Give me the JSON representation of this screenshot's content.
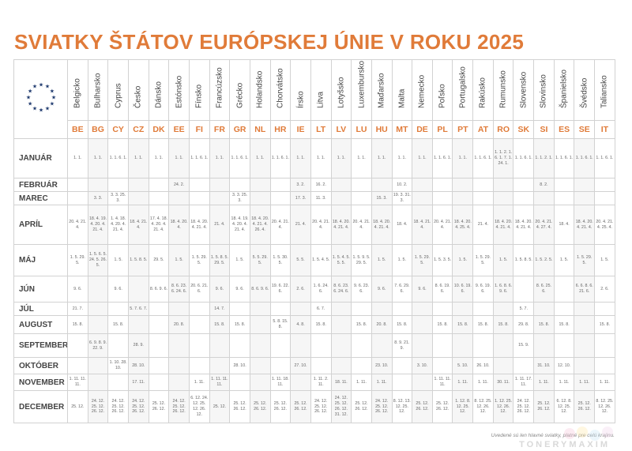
{
  "title": "SVIATKY ŠTÁTOV EURÓPSKEJ ÚNIE V ROKU 2025",
  "footnote": "Uvedené sú len hlavné sviatky, platné pre celú krajinu.",
  "brand": "TONERYMAXIM",
  "icons": {
    "eu_flag": "eu-stars-icon"
  },
  "colors": {
    "accent": "#e07b39",
    "grid": "#d2d2d2",
    "text": "#444444"
  },
  "countries": [
    {
      "name": "Belgicko",
      "code": "BE"
    },
    {
      "name": "Bulharsko",
      "code": "BG"
    },
    {
      "name": "Cyprus",
      "code": "CY"
    },
    {
      "name": "Česko",
      "code": "CZ"
    },
    {
      "name": "Dánsko",
      "code": "DK"
    },
    {
      "name": "Estónsko",
      "code": "EE"
    },
    {
      "name": "Fínsko",
      "code": "FI"
    },
    {
      "name": "Francúzsko",
      "code": "FR"
    },
    {
      "name": "Grécko",
      "code": "GR"
    },
    {
      "name": "Holandsko",
      "code": "NL"
    },
    {
      "name": "Chorvátsko",
      "code": "HR"
    },
    {
      "name": "Írsko",
      "code": "IE"
    },
    {
      "name": "Litva",
      "code": "LT"
    },
    {
      "name": "Lotyšsko",
      "code": "LV"
    },
    {
      "name": "Luxembursko",
      "code": "LU"
    },
    {
      "name": "Maďarsko",
      "code": "HU"
    },
    {
      "name": "Malta",
      "code": "MT"
    },
    {
      "name": "Nemecko",
      "code": "DE"
    },
    {
      "name": "Poľsko",
      "code": "PL"
    },
    {
      "name": "Portugalsko",
      "code": "PT"
    },
    {
      "name": "Rakúsko",
      "code": "AT"
    },
    {
      "name": "Rumunsko",
      "code": "RO"
    },
    {
      "name": "Slovensko",
      "code": "SK"
    },
    {
      "name": "Slovinsko",
      "code": "SI"
    },
    {
      "name": "Španielsko",
      "code": "ES"
    },
    {
      "name": "Švédsko",
      "code": "SE"
    },
    {
      "name": "Taliansko",
      "code": "IT"
    }
  ],
  "months": [
    {
      "name": "JANUÁR",
      "cells": [
        "1. 1.",
        "1. 1.",
        "1. 1. 6. 1.",
        "1. 1.",
        "1. 1.",
        "1. 1.",
        "1. 1. 6. 1.",
        "1. 1.",
        "1. 1. 6. 1.",
        "1. 1.",
        "1. 1. 6. 1.",
        "1. 1.",
        "1. 1.",
        "1. 1.",
        "1. 1.",
        "1. 1.",
        "1. 1.",
        "1. 1.",
        "1. 1. 6. 1.",
        "1. 1.",
        "1. 1. 6. 1.",
        "1. 1. 2. 1. 6. 1. 7. 1. 24. 1.",
        "1. 1. 6. 1.",
        "1. 1. 2. 1.",
        "1. 1. 6. 1.",
        "1. 1. 6. 1.",
        "1. 1. 6. 1."
      ]
    },
    {
      "name": "FEBRUÁR",
      "cells": [
        "",
        "",
        "",
        "",
        "",
        "24. 2.",
        "",
        "",
        "",
        "",
        "",
        "3. 2.",
        "16. 2.",
        "",
        "",
        "",
        "10. 2.",
        "",
        "",
        "",
        "",
        "",
        "",
        "8. 2.",
        "",
        "",
        ""
      ]
    },
    {
      "name": "MAREC",
      "cells": [
        "",
        "3. 3.",
        "3. 3. 25. 3.",
        "",
        "",
        "",
        "",
        "",
        "3. 3. 25. 3.",
        "",
        "",
        "17. 3.",
        "11. 3.",
        "",
        "",
        "15. 3.",
        "19. 3. 31. 3.",
        "",
        "",
        "",
        "",
        "",
        "",
        "",
        "",
        "",
        ""
      ]
    },
    {
      "name": "APRÍL",
      "cells": [
        "20. 4. 21. 4.",
        "18. 4. 19. 4. 20. 4. 21. 4.",
        "1. 4. 18. 4. 20. 4. 21. 4.",
        "18. 4. 21. 4.",
        "17. 4. 18. 4. 20. 4. 21. 4.",
        "18. 4. 20. 4.",
        "18. 4. 20. 4. 21. 4.",
        "21. 4.",
        "18. 4. 19. 4. 20. 4. 21. 4.",
        "18. 4. 20. 4. 21. 4. 26. 4.",
        "20. 4. 21. 4.",
        "21. 4.",
        "20. 4. 21. 4.",
        "18. 4. 20. 4. 21. 4.",
        "20. 4. 21. 4.",
        "18. 4. 20. 4. 21. 4.",
        "18. 4.",
        "18. 4. 21. 4.",
        "20. 4. 21. 4.",
        "18. 4. 20. 4. 25. 4.",
        "21. 4.",
        "18. 4. 20. 4. 21. 4.",
        "18. 4. 20. 4. 21. 4.",
        "20. 4. 21. 4. 27. 4.",
        "18. 4.",
        "18. 4. 20. 4. 21. 4.",
        "20. 4. 21. 4. 25. 4."
      ]
    },
    {
      "name": "MÁJ",
      "cells": [
        "1. 5. 29. 5.",
        "1. 5. 6. 5. 24. 5. 26. 5.",
        "1. 5.",
        "1. 5. 8. 5.",
        "29. 5.",
        "1. 5.",
        "1. 5. 29. 5.",
        "1. 5. 8. 5. 29. 5.",
        "1. 5.",
        "5. 5. 29. 5.",
        "1. 5. 30. 5.",
        "5. 5.",
        "1. 5. 4. 5.",
        "1. 5. 4. 5. 5. 5.",
        "1. 5. 9. 5. 29. 5.",
        "1. 5.",
        "1. 5.",
        "1. 5. 29. 5.",
        "1. 5. 3. 5.",
        "1. 5.",
        "1. 5. 29. 5.",
        "1. 5.",
        "1. 5. 8. 5.",
        "1. 5. 2. 5.",
        "1. 5.",
        "1. 5. 29. 5.",
        "1. 5."
      ]
    },
    {
      "name": "JÚN",
      "cells": [
        "9. 6.",
        "",
        "9. 6.",
        "",
        "8. 6. 9. 6.",
        "8. 6. 23. 6. 24. 6.",
        "20. 6. 21. 6.",
        "9. 6.",
        "9. 6.",
        "8. 6. 9. 6.",
        "19. 6. 22. 6.",
        "2. 6.",
        "1. 6. 24. 6.",
        "8. 6. 23. 6. 24. 6.",
        "9. 6. 23. 6.",
        "9. 6.",
        "7. 6. 29. 6.",
        "9. 6.",
        "8. 6. 19. 6.",
        "10. 6. 19. 6.",
        "9. 6. 19. 6.",
        "1. 6. 8. 6. 9. 6.",
        "",
        "8. 6. 25. 6.",
        "",
        "6. 6. 8. 6. 21. 6.",
        "2. 6."
      ]
    },
    {
      "name": "JÚL",
      "cells": [
        "21. 7.",
        "",
        "",
        "5. 7. 6. 7.",
        "",
        "",
        "",
        "14. 7.",
        "",
        "",
        "",
        "",
        "6. 7.",
        "",
        "",
        "",
        "",
        "",
        "",
        "",
        "",
        "",
        "5. 7.",
        "",
        "",
        "",
        ""
      ]
    },
    {
      "name": "AUGUST",
      "cells": [
        "15. 8.",
        "",
        "15. 8.",
        "",
        "",
        "20. 8.",
        "",
        "15. 8.",
        "15. 8.",
        "",
        "5. 8. 15. 8.",
        "4. 8.",
        "15. 8.",
        "",
        "15. 8.",
        "20. 8.",
        "15. 8.",
        "",
        "15. 8.",
        "15. 8.",
        "15. 8.",
        "15. 8.",
        "29. 8.",
        "15. 8.",
        "15. 8.",
        "",
        "15. 8."
      ]
    },
    {
      "name": "SEPTEMBER",
      "cells": [
        "",
        "6. 9. 8. 9. 22. 9.",
        "",
        "28. 9.",
        "",
        "",
        "",
        "",
        "",
        "",
        "",
        "",
        "",
        "",
        "",
        "",
        "8. 9. 21. 9.",
        "",
        "",
        "",
        "",
        "",
        "15. 9.",
        "",
        "",
        "",
        ""
      ]
    },
    {
      "name": "OKTÓBER",
      "cells": [
        "",
        "",
        "1. 10. 28. 10.",
        "28. 10.",
        "",
        "",
        "",
        "",
        "28. 10.",
        "",
        "",
        "27. 10.",
        "",
        "",
        "",
        "23. 10.",
        "",
        "3. 10.",
        "",
        "5. 10.",
        "26. 10.",
        "",
        "",
        "31. 10.",
        "12. 10.",
        "",
        ""
      ]
    },
    {
      "name": "NOVEMBER",
      "cells": [
        "1. 11. 11. 11.",
        "",
        "",
        "17. 11.",
        "",
        "",
        "1. 11.",
        "1. 11. 11. 11.",
        "",
        "",
        "1. 11. 18. 11.",
        "",
        "1. 11. 2. 11.",
        "18. 11.",
        "1. 11.",
        "1. 11.",
        "",
        "",
        "1. 11. 11. 11.",
        "1. 11.",
        "1. 11.",
        "30. 11.",
        "1. 11. 17. 11.",
        "1. 11.",
        "1. 11.",
        "1. 11.",
        "1. 11."
      ]
    },
    {
      "name": "DECEMBER",
      "cells": [
        "25. 12.",
        "24. 12. 25. 12. 26. 12.",
        "24. 12. 25. 12. 26. 12.",
        "24. 12. 25. 12. 26. 12.",
        "25. 12. 26. 12.",
        "24. 12. 25. 12. 26. 12.",
        "6. 12. 24. 12. 25. 12. 26. 12.",
        "25. 12.",
        "25. 12. 26. 12.",
        "25. 12. 26. 12.",
        "25. 12. 26. 12.",
        "25. 12. 26. 12.",
        "24. 12. 25. 12. 26. 12.",
        "24. 12. 25. 12. 26. 12. 31. 12.",
        "25. 12. 26. 12.",
        "24. 12. 25. 12. 26. 12.",
        "8. 12. 13. 12. 25. 12.",
        "25. 12. 26. 12.",
        "25. 12. 26. 12.",
        "1. 12. 8. 12. 25. 12.",
        "8. 12. 25. 12. 26. 12.",
        "1. 12. 25. 12. 26. 12.",
        "24. 12. 25. 12. 26. 12.",
        "25. 12. 26. 12.",
        "6. 12. 8. 12. 25. 12.",
        "25. 12. 26. 12.",
        "8. 12. 25. 12. 26. 12."
      ]
    }
  ]
}
